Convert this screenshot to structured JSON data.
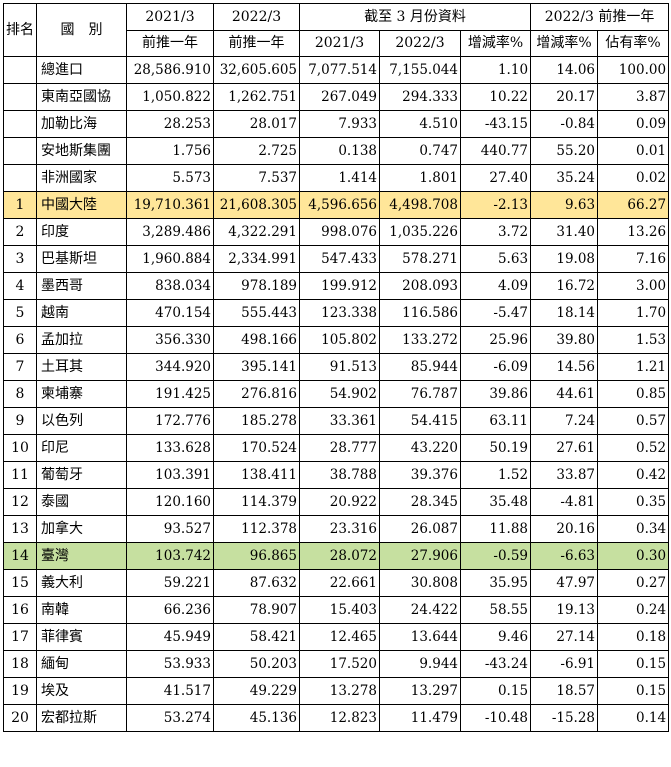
{
  "headers": {
    "rank": "排名",
    "country": "國　別",
    "col1_top": "2021/3",
    "col1_bottom": "前推一年",
    "col2_top": "2022/3",
    "col2_bottom": "前推一年",
    "group_mar": "截至 3 月份資料",
    "group_mar_sub1": "2021/3",
    "group_mar_sub2": "2022/3",
    "group_mar_sub3": "增減率%",
    "group_yr": "2022/3 前推一年",
    "group_yr_sub1": "增減率%",
    "group_yr_sub2": "佔有率%"
  },
  "rows": [
    {
      "rank": "",
      "name": "總進口",
      "v": [
        "28,586.910",
        "32,605.605",
        "7,077.514",
        "7,155.044",
        "1.10",
        "14.06",
        "100.00"
      ]
    },
    {
      "rank": "",
      "name": "東南亞國協",
      "v": [
        "1,050.822",
        "1,262.751",
        "267.049",
        "294.333",
        "10.22",
        "20.17",
        "3.87"
      ]
    },
    {
      "rank": "",
      "name": "加勒比海",
      "v": [
        "28.253",
        "28.017",
        "7.933",
        "4.510",
        "-43.15",
        "-0.84",
        "0.09"
      ]
    },
    {
      "rank": "",
      "name": "安地斯集團",
      "v": [
        "1.756",
        "2.725",
        "0.138",
        "0.747",
        "440.77",
        "55.20",
        "0.01"
      ]
    },
    {
      "rank": "",
      "name": "非洲國家",
      "v": [
        "5.573",
        "7.537",
        "1.414",
        "1.801",
        "27.40",
        "35.24",
        "0.02"
      ]
    },
    {
      "rank": "1",
      "name": "中國大陸",
      "v": [
        "19,710.361",
        "21,608.305",
        "4,596.656",
        "4,498.708",
        "-2.13",
        "9.63",
        "66.27"
      ],
      "hl": "yellow"
    },
    {
      "rank": "2",
      "name": "印度",
      "v": [
        "3,289.486",
        "4,322.291",
        "998.076",
        "1,035.226",
        "3.72",
        "31.40",
        "13.26"
      ]
    },
    {
      "rank": "3",
      "name": "巴基斯坦",
      "v": [
        "1,960.884",
        "2,334.991",
        "547.433",
        "578.271",
        "5.63",
        "19.08",
        "7.16"
      ]
    },
    {
      "rank": "4",
      "name": "墨西哥",
      "v": [
        "838.034",
        "978.189",
        "199.912",
        "208.093",
        "4.09",
        "16.72",
        "3.00"
      ]
    },
    {
      "rank": "5",
      "name": "越南",
      "v": [
        "470.154",
        "555.443",
        "123.338",
        "116.586",
        "-5.47",
        "18.14",
        "1.70"
      ]
    },
    {
      "rank": "6",
      "name": "孟加拉",
      "v": [
        "356.330",
        "498.166",
        "105.802",
        "133.272",
        "25.96",
        "39.80",
        "1.53"
      ]
    },
    {
      "rank": "7",
      "name": "土耳其",
      "v": [
        "344.920",
        "395.141",
        "91.513",
        "85.944",
        "-6.09",
        "14.56",
        "1.21"
      ]
    },
    {
      "rank": "8",
      "name": "柬埔寨",
      "v": [
        "191.425",
        "276.816",
        "54.902",
        "76.787",
        "39.86",
        "44.61",
        "0.85"
      ]
    },
    {
      "rank": "9",
      "name": "以色列",
      "v": [
        "172.776",
        "185.278",
        "33.361",
        "54.415",
        "63.11",
        "7.24",
        "0.57"
      ]
    },
    {
      "rank": "10",
      "name": "印尼",
      "v": [
        "133.628",
        "170.524",
        "28.777",
        "43.220",
        "50.19",
        "27.61",
        "0.52"
      ]
    },
    {
      "rank": "11",
      "name": "葡萄牙",
      "v": [
        "103.391",
        "138.411",
        "38.788",
        "39.376",
        "1.52",
        "33.87",
        "0.42"
      ]
    },
    {
      "rank": "12",
      "name": "泰國",
      "v": [
        "120.160",
        "114.379",
        "20.922",
        "28.345",
        "35.48",
        "-4.81",
        "0.35"
      ]
    },
    {
      "rank": "13",
      "name": "加拿大",
      "v": [
        "93.527",
        "112.378",
        "23.316",
        "26.087",
        "11.88",
        "20.16",
        "0.34"
      ]
    },
    {
      "rank": "14",
      "name": "臺灣",
      "v": [
        "103.742",
        "96.865",
        "28.072",
        "27.906",
        "-0.59",
        "-6.63",
        "0.30"
      ],
      "hl": "green"
    },
    {
      "rank": "15",
      "name": "義大利",
      "v": [
        "59.221",
        "87.632",
        "22.661",
        "30.808",
        "35.95",
        "47.97",
        "0.27"
      ]
    },
    {
      "rank": "16",
      "name": "南韓",
      "v": [
        "66.236",
        "78.907",
        "15.403",
        "24.422",
        "58.55",
        "19.13",
        "0.24"
      ]
    },
    {
      "rank": "17",
      "name": "菲律賓",
      "v": [
        "45.949",
        "58.421",
        "12.465",
        "13.644",
        "9.46",
        "27.14",
        "0.18"
      ]
    },
    {
      "rank": "18",
      "name": "緬甸",
      "v": [
        "53.933",
        "50.203",
        "17.520",
        "9.944",
        "-43.24",
        "-6.91",
        "0.15"
      ]
    },
    {
      "rank": "19",
      "name": "埃及",
      "v": [
        "41.517",
        "49.229",
        "13.278",
        "13.297",
        "0.15",
        "18.57",
        "0.15"
      ]
    },
    {
      "rank": "20",
      "name": "宏都拉斯",
      "v": [
        "53.274",
        "45.136",
        "12.823",
        "11.479",
        "-10.48",
        "-15.28",
        "0.14"
      ]
    }
  ],
  "colors": {
    "highlight_yellow": "#ffe699",
    "highlight_green": "#c6e0a0"
  }
}
